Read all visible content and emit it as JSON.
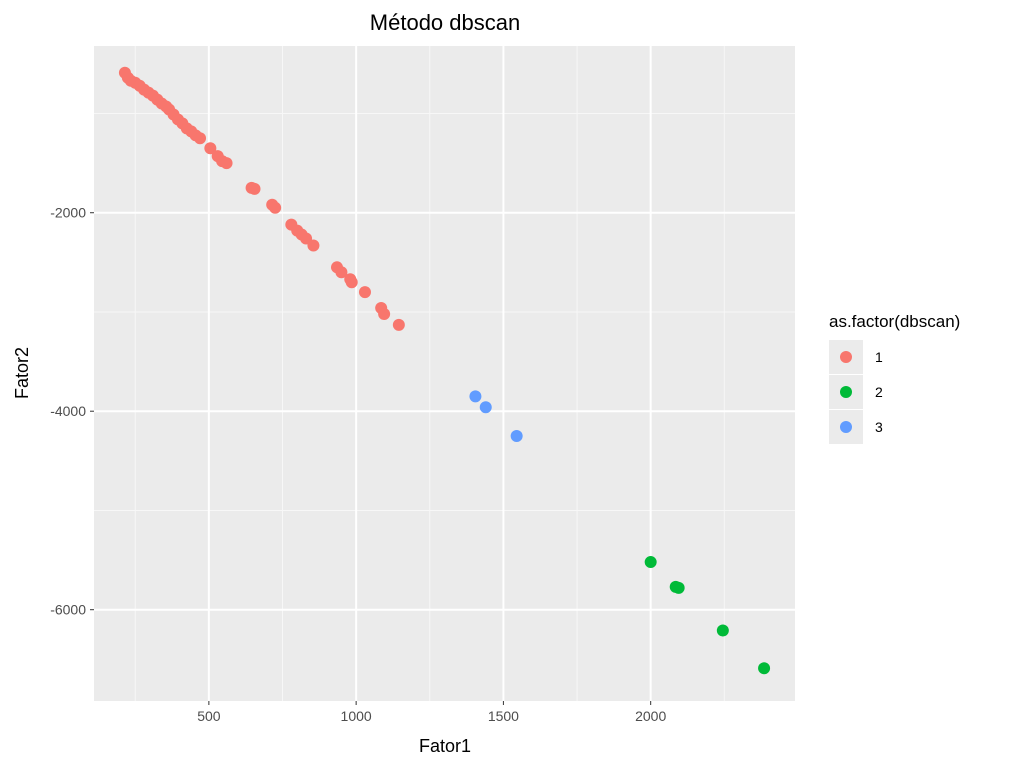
{
  "chart_data": {
    "type": "scatter",
    "title": "Método dbscan",
    "xlabel": "Fator1",
    "ylabel": "Fator2",
    "xlim": [
      110,
      2490
    ],
    "ylim": [
      -6920,
      -320
    ],
    "x_ticks": [
      500,
      1000,
      1500,
      2000
    ],
    "x_tick_labels": [
      "500",
      "1000",
      "1500",
      "2000"
    ],
    "y_ticks": [
      -2000,
      -4000,
      -6000
    ],
    "y_tick_labels": [
      "-2000",
      "-4000",
      "-6000"
    ],
    "grid": true,
    "legend": {
      "title": "as.factor(dbscan)",
      "position": "right"
    },
    "series": [
      {
        "name": "1",
        "color": "#F8766D",
        "points": [
          [
            215,
            -590
          ],
          [
            225,
            -640
          ],
          [
            235,
            -670
          ],
          [
            250,
            -690
          ],
          [
            265,
            -720
          ],
          [
            280,
            -760
          ],
          [
            295,
            -790
          ],
          [
            310,
            -820
          ],
          [
            325,
            -860
          ],
          [
            340,
            -900
          ],
          [
            355,
            -930
          ],
          [
            365,
            -960
          ],
          [
            380,
            -1010
          ],
          [
            395,
            -1060
          ],
          [
            410,
            -1100
          ],
          [
            425,
            -1150
          ],
          [
            440,
            -1180
          ],
          [
            455,
            -1220
          ],
          [
            470,
            -1250
          ],
          [
            505,
            -1350
          ],
          [
            530,
            -1430
          ],
          [
            545,
            -1480
          ],
          [
            560,
            -1500
          ],
          [
            645,
            -1750
          ],
          [
            655,
            -1760
          ],
          [
            715,
            -1920
          ],
          [
            725,
            -1950
          ],
          [
            780,
            -2120
          ],
          [
            800,
            -2180
          ],
          [
            815,
            -2220
          ],
          [
            830,
            -2260
          ],
          [
            855,
            -2330
          ],
          [
            935,
            -2550
          ],
          [
            950,
            -2600
          ],
          [
            980,
            -2670
          ],
          [
            985,
            -2700
          ],
          [
            1030,
            -2800
          ],
          [
            1085,
            -2960
          ],
          [
            1095,
            -3020
          ],
          [
            1145,
            -3130
          ]
        ]
      },
      {
        "name": "2",
        "color": "#00BA38",
        "points": [
          [
            2000,
            -5520
          ],
          [
            2085,
            -5770
          ],
          [
            2095,
            -5780
          ],
          [
            2245,
            -6210
          ],
          [
            2385,
            -6590
          ]
        ]
      },
      {
        "name": "3",
        "color": "#619CFF",
        "points": [
          [
            1405,
            -3850
          ],
          [
            1440,
            -3960
          ],
          [
            1545,
            -4250
          ]
        ]
      }
    ]
  }
}
